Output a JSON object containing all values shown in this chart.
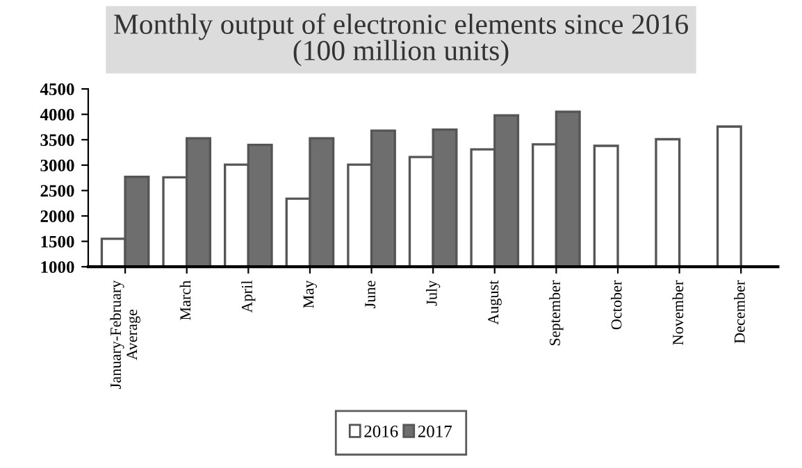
{
  "chart_data": {
    "type": "bar",
    "title": "Monthly output of electronic elements since 2016\n(100 million units)",
    "categories": [
      "January-February\nAverage",
      "March",
      "April",
      "May",
      "June",
      "July",
      "August",
      "September",
      "October",
      "November",
      "December"
    ],
    "series": [
      {
        "name": "2016",
        "color": "#ffffff",
        "values": [
          1550,
          2760,
          3010,
          2340,
          3010,
          3160,
          3310,
          3410,
          3380,
          3510,
          3760
        ]
      },
      {
        "name": "2017",
        "color": "#6e6e6e",
        "values": [
          2770,
          3530,
          3400,
          3530,
          3680,
          3700,
          3980,
          4050,
          null,
          null,
          null
        ]
      }
    ],
    "ylim": [
      1000,
      4500
    ],
    "yticks": [
      1000,
      1500,
      2000,
      2500,
      3000,
      3500,
      4000,
      4500
    ],
    "grid": false,
    "legend": "bottom"
  }
}
